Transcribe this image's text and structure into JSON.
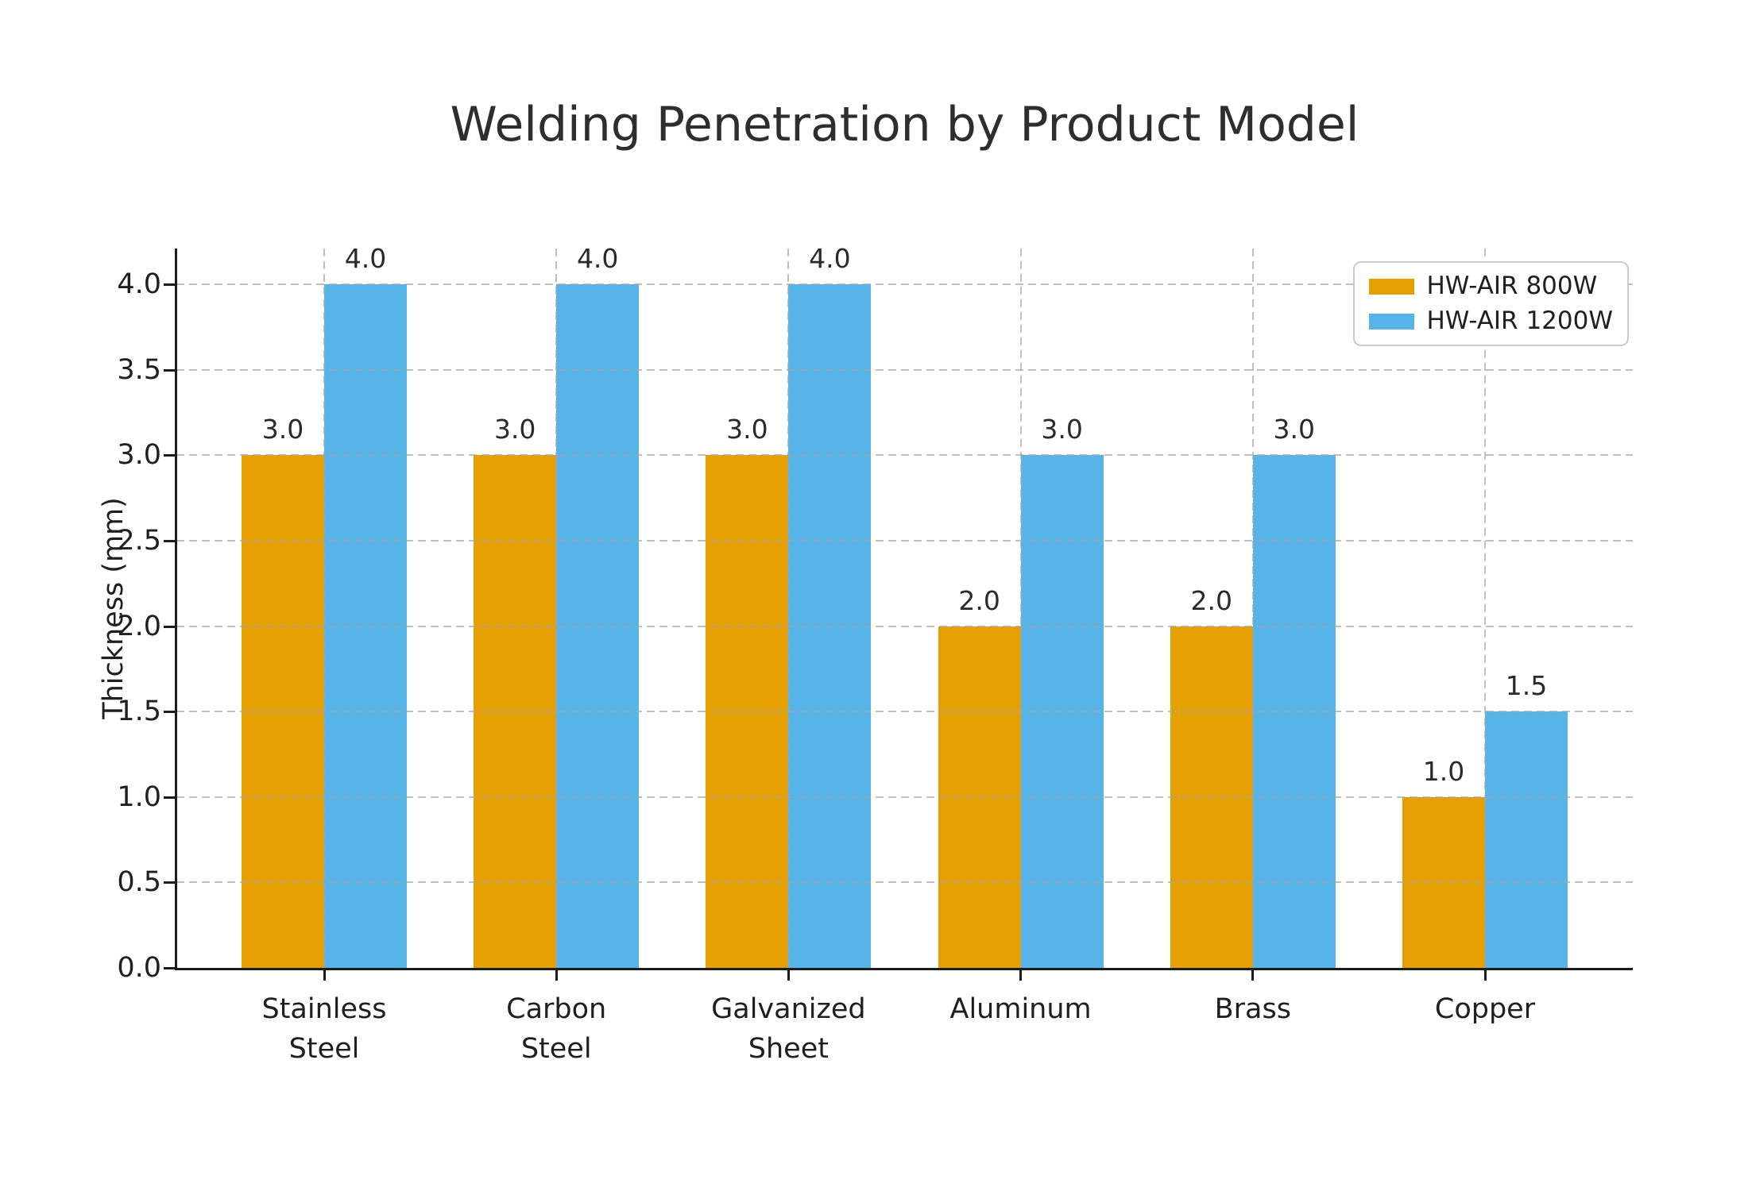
{
  "chart_data": {
    "type": "bar",
    "title": "Welding Penetration by Product Model",
    "ylabel": "Thickness (mm)",
    "xlabel": "",
    "categories": [
      "Stainless Steel",
      "Carbon Steel",
      "Galvanized Sheet",
      "Aluminum",
      "Brass",
      "Copper"
    ],
    "category_label_lines": [
      [
        "Stainless",
        "Steel"
      ],
      [
        "Carbon",
        "Steel"
      ],
      [
        "Galvanized",
        "Sheet"
      ],
      [
        "Aluminum"
      ],
      [
        "Brass"
      ],
      [
        "Copper"
      ]
    ],
    "series": [
      {
        "name": "HW-AIR 800W",
        "color": "#E69F00",
        "values": [
          3.0,
          3.0,
          3.0,
          2.0,
          2.0,
          1.0
        ]
      },
      {
        "name": "HW-AIR 1200W",
        "color": "#56B4E9",
        "values": [
          4.0,
          4.0,
          4.0,
          3.0,
          3.0,
          1.5
        ]
      }
    ],
    "bar_value_labels": [
      [
        "3.0",
        "3.0",
        "3.0",
        "2.0",
        "2.0",
        "1.0"
      ],
      [
        "4.0",
        "4.0",
        "4.0",
        "3.0",
        "3.0",
        "1.5"
      ]
    ],
    "yticks": [
      0.0,
      0.5,
      1.0,
      1.5,
      2.0,
      2.5,
      3.0,
      3.5,
      4.0
    ],
    "ytick_labels": [
      "0.0",
      "0.5",
      "1.0",
      "1.5",
      "2.0",
      "2.5",
      "3.0",
      "3.5",
      "4.0"
    ],
    "ylim": [
      0,
      4.21
    ],
    "grid": true,
    "grid_style": "dashed",
    "legend_position": "upper right"
  }
}
